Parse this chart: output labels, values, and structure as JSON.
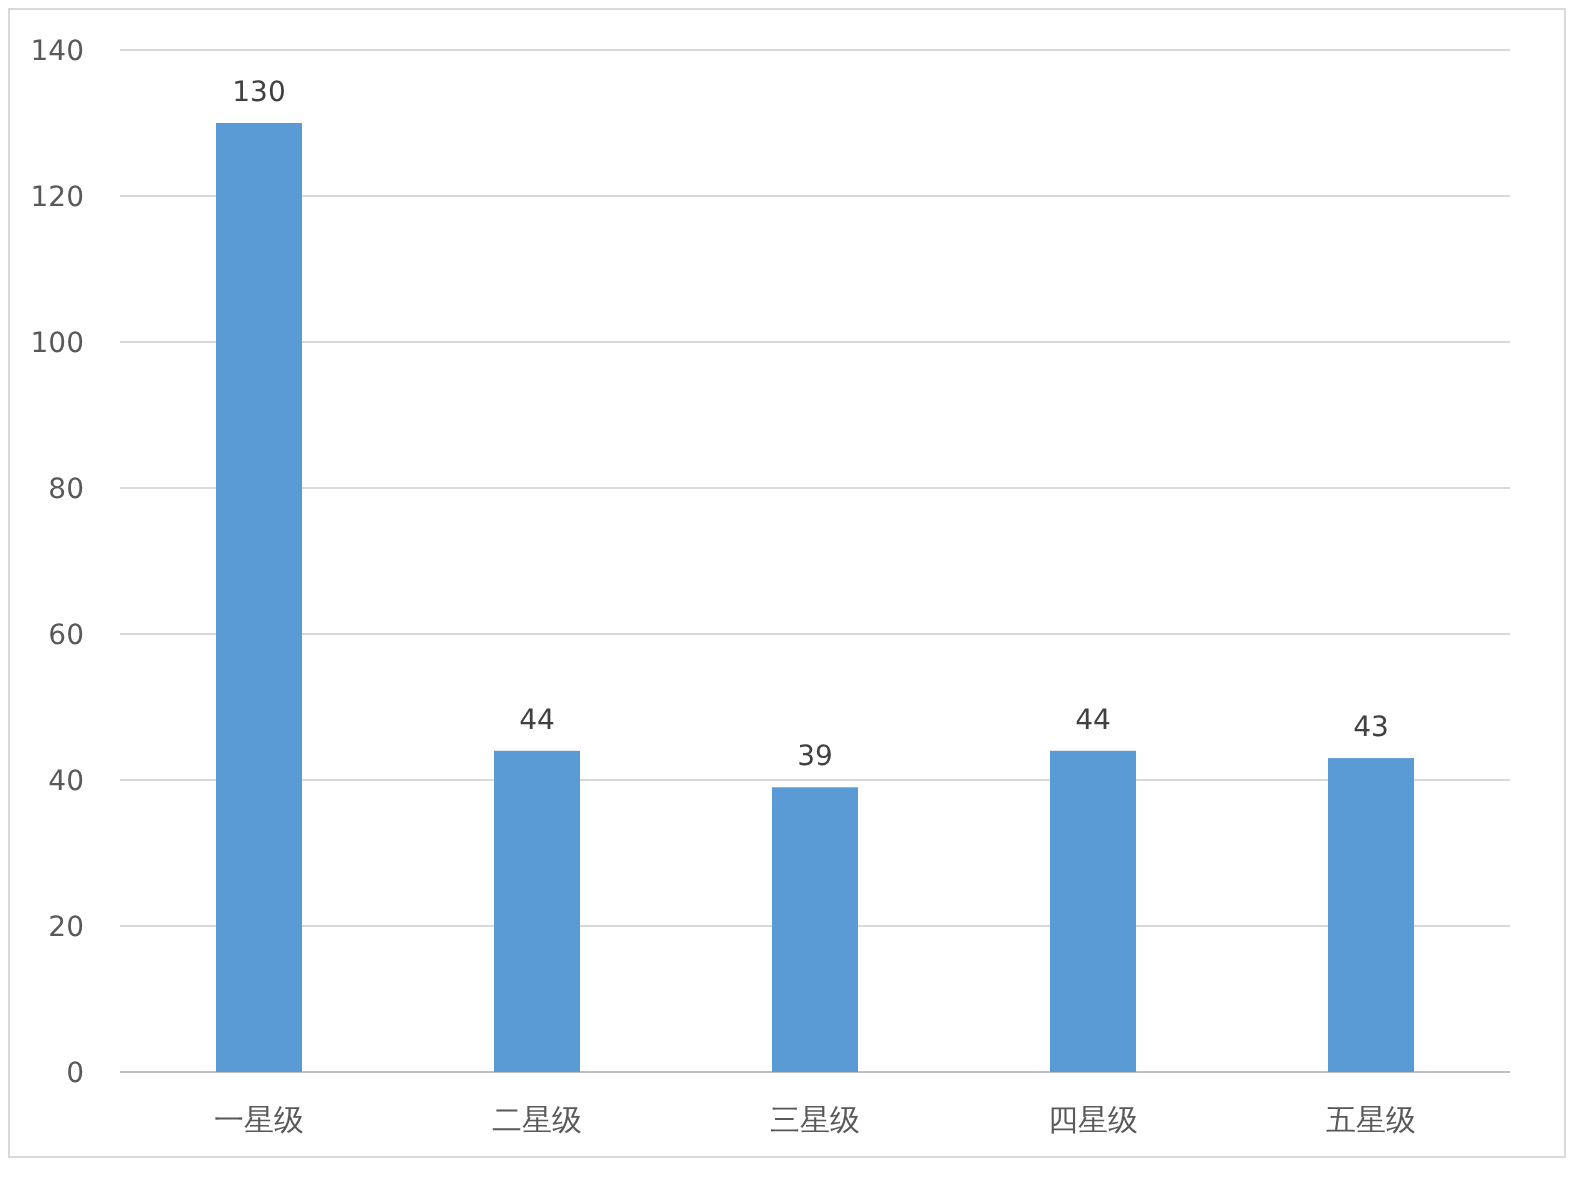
{
  "chart_data": {
    "type": "bar",
    "categories": [
      "一星级",
      "二星级",
      "三星级",
      "四星级",
      "五星级"
    ],
    "values": [
      130,
      44,
      39,
      44,
      43
    ],
    "color": "#5b9bd5",
    "ylim": [
      0,
      140
    ],
    "yticks": [
      0,
      20,
      40,
      60,
      80,
      100,
      120,
      140
    ],
    "grid": "y",
    "data_labels": true
  }
}
